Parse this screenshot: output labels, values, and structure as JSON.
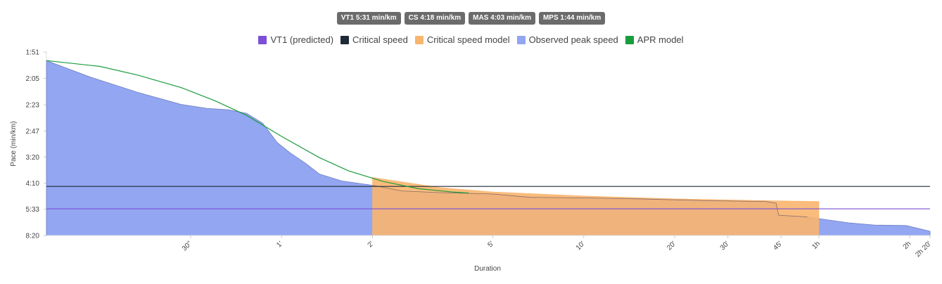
{
  "badges": [
    {
      "label": "VT1 5:31 min/km"
    },
    {
      "label": "CS 4:18 min/km"
    },
    {
      "label": "MAS 4:03 min/km"
    },
    {
      "label": "MPS 1:44 min/km"
    }
  ],
  "legend": [
    {
      "label": "VT1 (predicted)",
      "color": "#7b4fd6"
    },
    {
      "label": "Critical speed",
      "color": "#1f2937"
    },
    {
      "label": "Critical speed model",
      "color": "#f9b56e"
    },
    {
      "label": "Observed peak speed",
      "color": "#92a6f2"
    },
    {
      "label": "APR model",
      "color": "#1a9c3e"
    }
  ],
  "chart_data": {
    "type": "area",
    "xlabel": "Duration",
    "ylabel": "Pace (min/km)",
    "x_scale": "log",
    "y_scale": "reciprocal (speed)",
    "xlim_seconds": [
      10,
      8400
    ],
    "x_ticks": [
      {
        "label": "30\"",
        "seconds": 30
      },
      {
        "label": "1'",
        "seconds": 60
      },
      {
        "label": "2'",
        "seconds": 120
      },
      {
        "label": "5'",
        "seconds": 300
      },
      {
        "label": "10'",
        "seconds": 600
      },
      {
        "label": "20'",
        "seconds": 1200
      },
      {
        "label": "30'",
        "seconds": 1800
      },
      {
        "label": "45'",
        "seconds": 2700
      },
      {
        "label": "1h",
        "seconds": 3600
      },
      {
        "label": "2h",
        "seconds": 7200
      },
      {
        "label": "2h 20'",
        "seconds": 8400
      }
    ],
    "y_ticks": [
      {
        "label": "1:51",
        "pace_sec": 111
      },
      {
        "label": "2:05",
        "pace_sec": 125
      },
      {
        "label": "2:23",
        "pace_sec": 143
      },
      {
        "label": "2:47",
        "pace_sec": 167
      },
      {
        "label": "3:20",
        "pace_sec": 200
      },
      {
        "label": "4:10",
        "pace_sec": 250
      },
      {
        "label": "5:33",
        "pace_sec": 333
      },
      {
        "label": "8:20",
        "pace_sec": 500
      }
    ],
    "series": [
      {
        "name": "Observed peak speed",
        "color": "#92a6f2",
        "points": [
          {
            "t": 10,
            "pace": 1.92
          },
          {
            "t": 14,
            "pace": 2.07
          },
          {
            "t": 20,
            "pace": 2.23
          },
          {
            "t": 28,
            "pace": 2.38
          },
          {
            "t": 34,
            "pace": 2.43
          },
          {
            "t": 40,
            "pace": 2.45
          },
          {
            "t": 46,
            "pace": 2.5
          },
          {
            "t": 52,
            "pace": 2.65
          },
          {
            "t": 58,
            "pace": 3.0
          },
          {
            "t": 64,
            "pace": 3.23
          },
          {
            "t": 72,
            "pace": 3.5
          },
          {
            "t": 80,
            "pace": 3.83
          },
          {
            "t": 95,
            "pace": 4.08
          },
          {
            "t": 120,
            "pace": 4.25
          },
          {
            "t": 150,
            "pace": 4.5
          },
          {
            "t": 200,
            "pace": 4.58
          },
          {
            "t": 300,
            "pace": 4.65
          },
          {
            "t": 400,
            "pace": 4.82
          },
          {
            "t": 600,
            "pace": 4.85
          },
          {
            "t": 900,
            "pace": 4.9
          },
          {
            "t": 1500,
            "pace": 5.0
          },
          {
            "t": 2400,
            "pace": 5.05
          },
          {
            "t": 2600,
            "pace": 5.15
          },
          {
            "t": 2650,
            "pace": 6.0
          },
          {
            "t": 3300,
            "pace": 6.15
          },
          {
            "t": 4500,
            "pace": 6.7
          },
          {
            "t": 5500,
            "pace": 6.95
          },
          {
            "t": 7000,
            "pace": 7.0
          },
          {
            "t": 8400,
            "pace": 7.7
          }
        ]
      },
      {
        "name": "Critical speed model",
        "color": "#f9b56e",
        "points": [
          {
            "t": 120,
            "pace": 3.95
          },
          {
            "t": 200,
            "pace": 4.35
          },
          {
            "t": 300,
            "pace": 4.55
          },
          {
            "t": 600,
            "pace": 4.75
          },
          {
            "t": 1200,
            "pace": 4.9
          },
          {
            "t": 2400,
            "pace": 5.0
          },
          {
            "t": 3600,
            "pace": 5.05
          }
        ]
      },
      {
        "name": "APR model",
        "color": "#1a9c3e",
        "points": [
          {
            "t": 10,
            "pace": 1.92
          },
          {
            "t": 15,
            "pace": 1.97
          },
          {
            "t": 20,
            "pace": 2.05
          },
          {
            "t": 28,
            "pace": 2.18
          },
          {
            "t": 36,
            "pace": 2.33
          },
          {
            "t": 46,
            "pace": 2.53
          },
          {
            "t": 60,
            "pace": 2.88
          },
          {
            "t": 80,
            "pace": 3.35
          },
          {
            "t": 100,
            "pace": 3.73
          },
          {
            "t": 130,
            "pace": 4.1
          },
          {
            "t": 170,
            "pace": 4.4
          },
          {
            "t": 220,
            "pace": 4.55
          },
          {
            "t": 250,
            "pace": 4.6
          }
        ]
      }
    ],
    "reference_lines": [
      {
        "name": "Critical speed",
        "pace": 4.3,
        "color": "#1f2937"
      },
      {
        "name": "VT1 (predicted)",
        "pace": 5.52,
        "color": "#7b4fd6"
      }
    ]
  }
}
